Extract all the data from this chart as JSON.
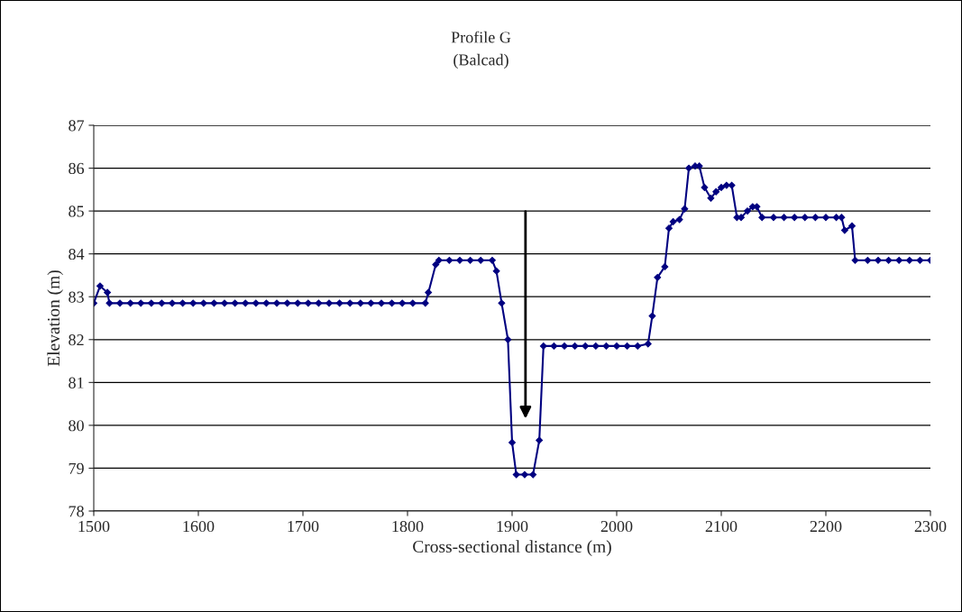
{
  "chart_data": {
    "type": "line",
    "title": "Profile G",
    "subtitle": "(Balcad)",
    "xlabel": "Cross-sectional distance (m)",
    "ylabel": "Elevation (m)",
    "xlim": [
      1500,
      2300
    ],
    "xticks": [
      1500,
      1600,
      1700,
      1800,
      1900,
      2000,
      2100,
      2200,
      2300
    ],
    "ylim": [
      78,
      87
    ],
    "yticks": [
      78,
      79,
      80,
      81,
      82,
      83,
      84,
      85,
      86,
      87
    ],
    "grid": "y",
    "legend": false,
    "marker": "diamond",
    "line_style": "solid",
    "series": [
      {
        "color": "#000080",
        "x": [
          1500,
          1506,
          1513,
          1515,
          1525,
          1535,
          1545,
          1555,
          1565,
          1575,
          1585,
          1595,
          1605,
          1615,
          1625,
          1635,
          1645,
          1655,
          1665,
          1675,
          1685,
          1695,
          1705,
          1715,
          1725,
          1735,
          1745,
          1755,
          1765,
          1775,
          1785,
          1795,
          1805,
          1817,
          1820,
          1827,
          1830,
          1840,
          1850,
          1860,
          1870,
          1881,
          1885,
          1890,
          1896,
          1900,
          1904,
          1912,
          1920,
          1926,
          1930,
          1940,
          1950,
          1960,
          1970,
          1980,
          1990,
          2000,
          2010,
          2020,
          2030,
          2034,
          2039,
          2046,
          2050,
          2054,
          2060,
          2065,
          2069,
          2075,
          2079,
          2084,
          2090,
          2095,
          2100,
          2105,
          2110,
          2115,
          2119,
          2125,
          2130,
          2134,
          2139,
          2150,
          2160,
          2170,
          2180,
          2190,
          2200,
          2210,
          2215,
          2218,
          2225,
          2228,
          2240,
          2250,
          2260,
          2270,
          2280,
          2290,
          2300
        ],
        "values": [
          82.85,
          83.25,
          83.1,
          82.85,
          82.85,
          82.85,
          82.85,
          82.85,
          82.85,
          82.85,
          82.85,
          82.85,
          82.85,
          82.85,
          82.85,
          82.85,
          82.85,
          82.85,
          82.85,
          82.85,
          82.85,
          82.85,
          82.85,
          82.85,
          82.85,
          82.85,
          82.85,
          82.85,
          82.85,
          82.85,
          82.85,
          82.85,
          82.85,
          82.85,
          83.1,
          83.75,
          83.85,
          83.85,
          83.85,
          83.85,
          83.85,
          83.85,
          83.6,
          82.85,
          82.0,
          79.6,
          78.85,
          78.85,
          78.85,
          79.65,
          81.85,
          81.85,
          81.85,
          81.85,
          81.85,
          81.85,
          81.85,
          81.85,
          81.85,
          81.85,
          81.9,
          82.55,
          83.45,
          83.7,
          84.6,
          84.75,
          84.8,
          85.05,
          86.0,
          86.05,
          86.05,
          85.55,
          85.3,
          85.45,
          85.55,
          85.6,
          85.6,
          84.85,
          84.85,
          85.0,
          85.1,
          85.1,
          84.85,
          84.85,
          84.85,
          84.85,
          84.85,
          84.85,
          84.85,
          84.85,
          84.85,
          84.55,
          84.65,
          83.85,
          83.85,
          83.85,
          83.85,
          83.85,
          83.85,
          83.85,
          83.85
        ]
      }
    ]
  }
}
